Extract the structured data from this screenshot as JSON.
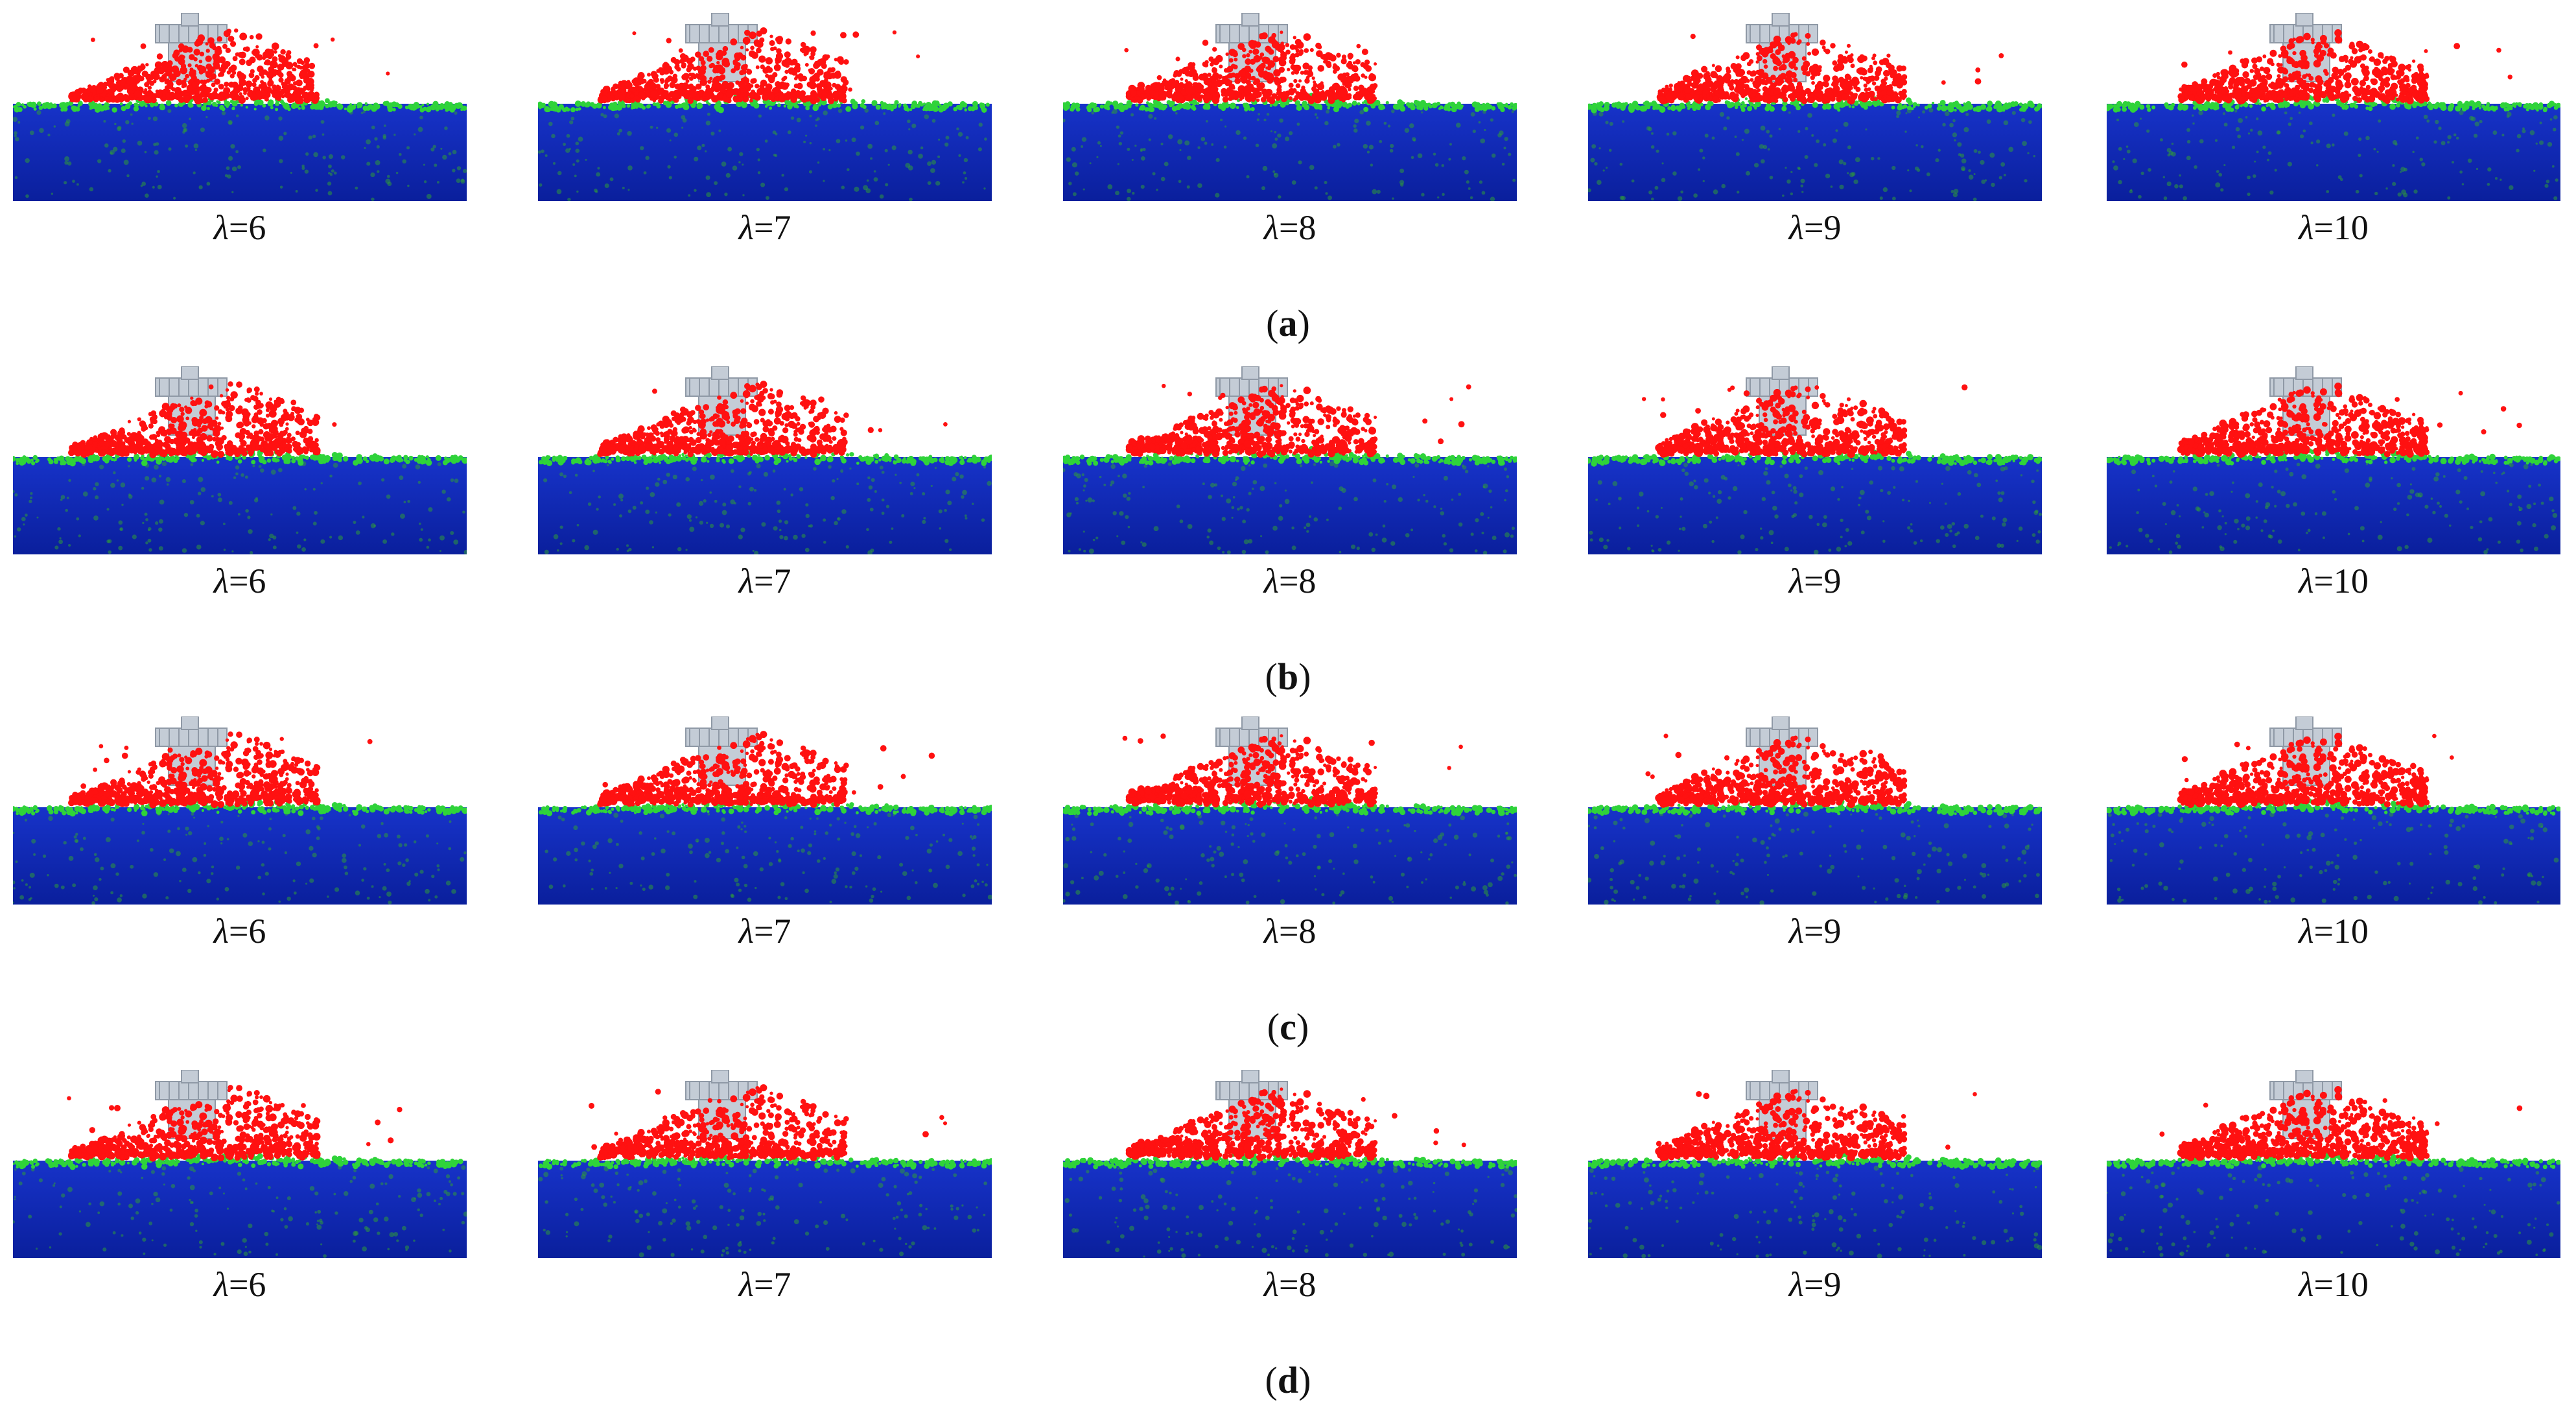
{
  "figure": {
    "rows": [
      {
        "caption_letter": "a",
        "panels": [
          {
            "symbol": "λ",
            "value_text": "=6"
          },
          {
            "symbol": "λ",
            "value_text": "=7"
          },
          {
            "symbol": "λ",
            "value_text": "=8"
          },
          {
            "symbol": "λ",
            "value_text": "=9"
          },
          {
            "symbol": "λ",
            "value_text": "=10"
          }
        ]
      },
      {
        "caption_letter": "b",
        "panels": [
          {
            "symbol": "λ",
            "value_text": "=6"
          },
          {
            "symbol": "λ",
            "value_text": "=7"
          },
          {
            "symbol": "λ",
            "value_text": "=8"
          },
          {
            "symbol": "λ",
            "value_text": "=9"
          },
          {
            "symbol": "λ",
            "value_text": "=10"
          }
        ]
      },
      {
        "caption_letter": "c",
        "panels": [
          {
            "symbol": "λ",
            "value_text": "=6"
          },
          {
            "symbol": "λ",
            "value_text": "=7"
          },
          {
            "symbol": "λ",
            "value_text": "=8"
          },
          {
            "symbol": "λ",
            "value_text": "=9"
          },
          {
            "symbol": "λ",
            "value_text": "=10"
          }
        ]
      },
      {
        "caption_letter": "d",
        "panels": [
          {
            "symbol": "λ",
            "value_text": "=6"
          },
          {
            "symbol": "λ",
            "value_text": "=7"
          },
          {
            "symbol": "λ",
            "value_text": "=8"
          },
          {
            "symbol": "λ",
            "value_text": "=9"
          },
          {
            "symbol": "λ",
            "value_text": "=10"
          }
        ]
      }
    ],
    "colors": {
      "soil_deep": "#0a1f9c",
      "soil_mid": "#1733c9",
      "soil_green_flecks": "#2f9a3a",
      "surface_green": "#2fd33a",
      "thrown_particles": "#ff1111",
      "tool": "#c4ccd6",
      "tool_edge": "#8f99a6"
    }
  }
}
